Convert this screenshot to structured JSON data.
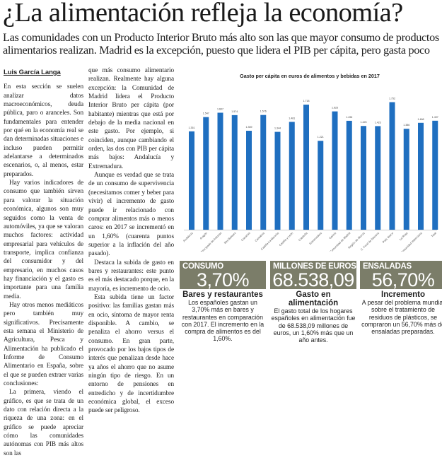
{
  "article": {
    "headline": "¿La alimentación refleja la economía?",
    "subheadline": "Las comunidades con un Producto Interior Bruto más alto son las que mayor consumo de productos alimentarios realizan. Madrid es la excepción, puesto que lidera el PIB per cápita, pero gasta poco",
    "byline": "Luis García Langa",
    "col1": [
      "En esta sección se suelen analizar datos macroeconómicos, deuda pública, paro o aranceles. Son fundamentales para entender por qué en la economía real se dan determinadas situaciones e incluso pueden permitir adelantarse a determinados escenarios, o, al menos, estar preparados.",
      "Hay varios indicadores de consumo que también sirven para valorar la situación económica, algunos son muy seguidos como la venta de automóviles, ya que se valoran muchos factores: actividad empresarial para vehículos de transporte, implica confianza del consumidor y del empresario, en muchos casos hay financiación y el gasto es importante para una familia media.",
      "Hay otros menos mediáticos pero también muy significativos. Precisamente esta semana el Ministerio de Agricultura, Pesca y Alimentación ha publicado el Informe de Consumo Alimentario en España, sobre el que se pueden extraer varias conclusiones:",
      "La primera, viendo el gráfico, es que se trata de un dato con relación directa a la riqueza de una zona: en el gráfico se puede apreciar cómo las comunidades autónomas con PIB más altos son las"
    ],
    "col2": [
      "que más consumo alimentario realizan. Realmente hay alguna excepción: la Comunidad de Madrid lidera el Producto Interior Bruto per cápita (por habitante) mientras que está por debajo de la media nacional en este gasto. Por ejemplo, si coinciden, aunque cambiando el orden, las dos con PIB per cápita más bajos: Andalucía y Extremadura.",
      "Aunque es verdad que se trata de un consumo de supervivencia (necesitamos comer y beber para vivir) el incremento de gasto puede ir relacionado con comprar alimentos más o menos caros: en 2017 se incrementó en un 1,60% (cuarenta puntos superior a la inflación del año pasado).",
      "Destaca la subida de gasto en bares y restaurantes: este punto es el más destacado porque, en la mayoría, es incremento de ocio.",
      "Esta subida tiene un factor positivo: las familias gastan más en ocio, síntoma de mayor renta disponible. A cambio, se penaliza el ahorro versus el consumo. En gran parte, provocado por los bajos tipos de interés que penalizan desde hace ya años el ahorro que no asume ningún tipo de riesgo. En un entorno de pensiones en entredicho y de incertidumbre económica global, el exceso puede ser peligroso."
    ]
  },
  "chart_data": {
    "type": "bar",
    "title": "Gasto per cápita en euros de alimentos y bebidas en 2017",
    "categories": [
      "Andalucía",
      "Aragón",
      "Principado de Asturias",
      "Illes Balears",
      "Canarias",
      "Cantabria",
      "Castilla-La Mancha",
      "Castilla y León",
      "Cataluña",
      "Extremadura",
      "Galicia",
      "Comunidad de Madrid",
      "Región de Murcia",
      "C. Foral de Navarra",
      "País Vasco",
      "La Rioja",
      "Comunidad Valenciana",
      "Total"
    ],
    "values": [
      1351,
      1547,
      1607,
      1574,
      1359,
      1576,
      1344,
      1481,
      1718,
      1221,
      1625,
      1496,
      1425,
      1423,
      1752,
      1386,
      1468,
      1497
    ],
    "value_labels": [
      "1.351",
      "1.547",
      "1.607",
      "1.574",
      "1.359",
      "1.576",
      "1.344",
      "1.481",
      "1.718",
      "1.221",
      "1.625",
      "1.496",
      "1.425",
      "1.423",
      "1.752",
      "1.386",
      "1.468",
      "1.497"
    ],
    "ylim": [
      0,
      2000
    ],
    "grid": false,
    "bar_color": "#1f6fc0"
  },
  "stats": [
    {
      "label": "CONSUMO",
      "value": "3,70%",
      "title": "Bares y restaurantes",
      "text": "Los españoles gastan un 3,70% más en bares y restaurantes en comparación con 2017. El incremento en la compra de alimentos es del 1,60%."
    },
    {
      "label": "MILLONES DE EUROS",
      "value": "68.538,09",
      "title": "Gasto en alimentación",
      "text": "El gasto total de los hogares españoles en alimentación fue de 68.538,09 millones de euros, un 1,60% más que un año antes."
    },
    {
      "label": "ENSALADAS",
      "value": "56,70%",
      "title": "Incremento",
      "text": "A pesar del problema mundial sobre el tratamiento de residuos de plásticos, se compraron un 56,70% más de ensaladas preparadas."
    }
  ],
  "colors": {
    "stat_box": "#7b7d69",
    "bar": "#1f6fc0"
  }
}
